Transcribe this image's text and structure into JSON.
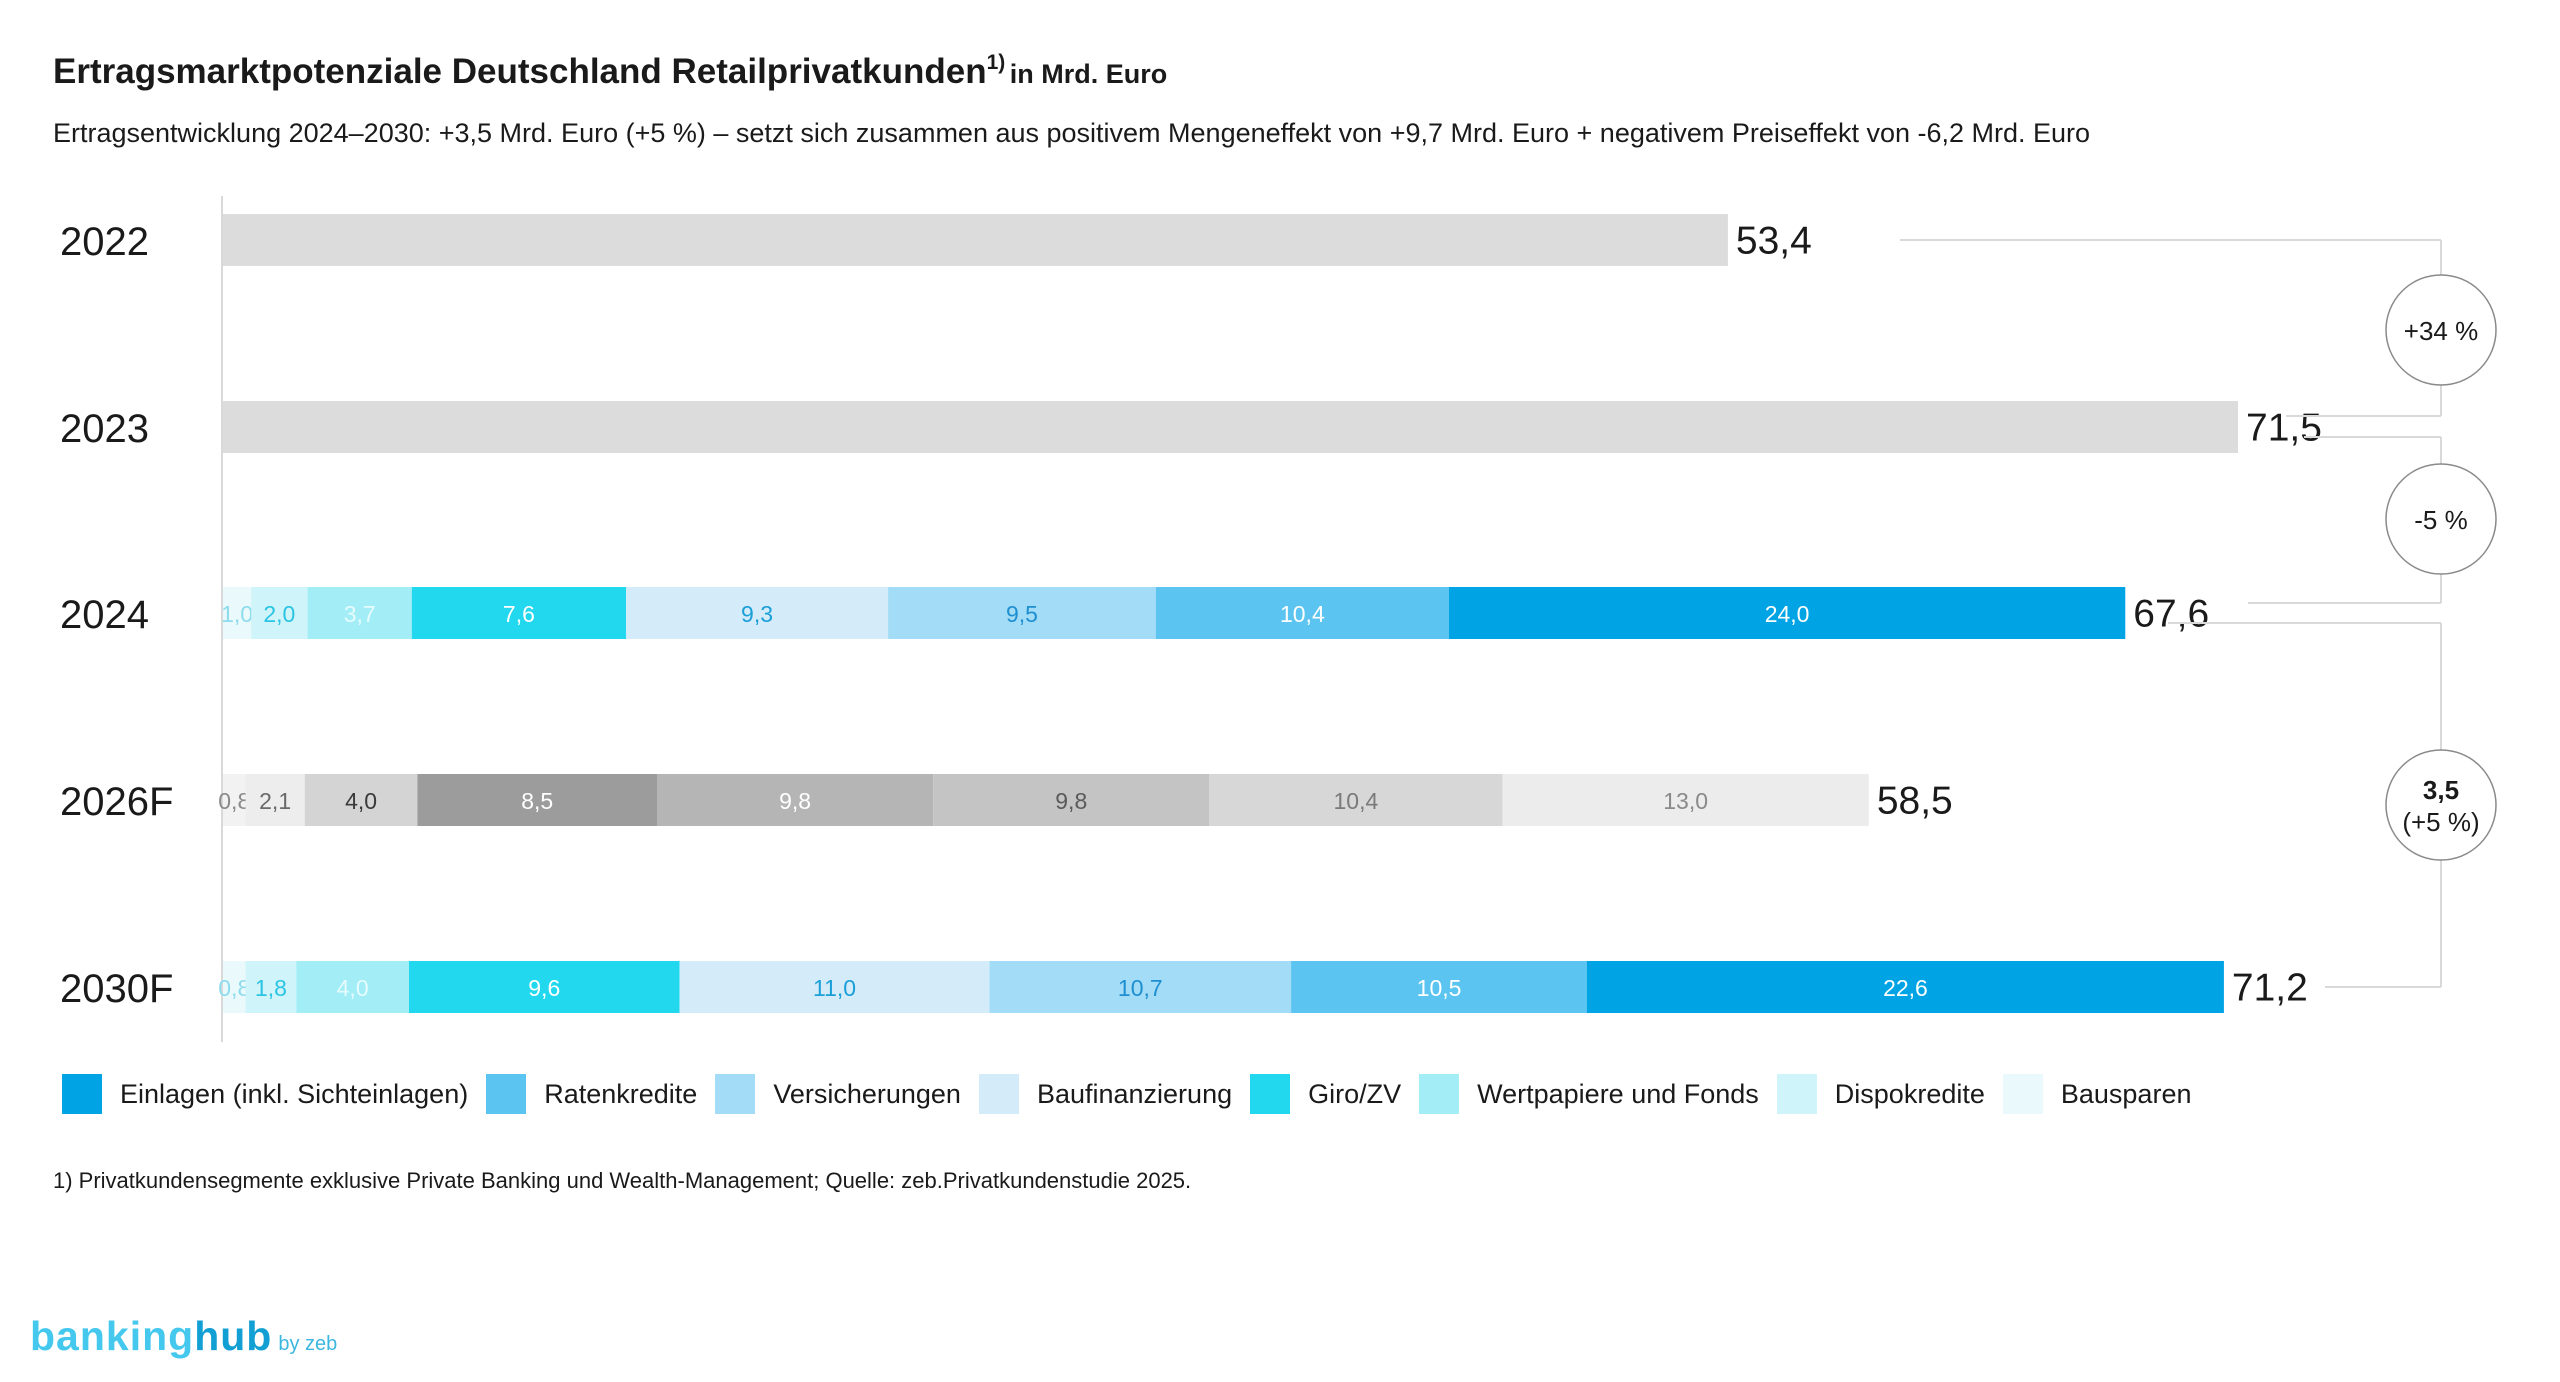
{
  "header": {
    "title": "Ertragsmarktpotenziale Deutschland Retailprivatkunden",
    "title_sup": "1)",
    "title_unit": "in Mrd. Euro",
    "subtitle": "Ertragsentwicklung 2024–2030: +3,5 Mrd. Euro (+5 %) – setzt sich zusammen aus positivem Mengeneffekt von +9,7 Mrd. Euro + negativem Preiseffekt von -6,2 Mrd. Euro"
  },
  "chart_data": {
    "type": "bar",
    "orientation": "horizontal",
    "stacked": true,
    "xlim": [
      0,
      71.5
    ],
    "categories": [
      "2022",
      "2023",
      "2024",
      "2026F",
      "2030F"
    ],
    "segment_order": [
      "Bausparen",
      "Dispokredite",
      "Wertpapiere und Fonds",
      "Giro/ZV",
      "Baufinanzierung",
      "Versicherungen",
      "Ratenkredite",
      "Einlagen (inkl. Sichteinlagen)"
    ],
    "rows": [
      {
        "label": "2022",
        "total": 53.4,
        "total_label": "53,4",
        "style": "total"
      },
      {
        "label": "2023",
        "total": 71.5,
        "total_label": "71,5",
        "style": "total"
      },
      {
        "label": "2024",
        "total": 67.6,
        "total_label": "67,6",
        "style": "blue",
        "values": [
          1.0,
          2.0,
          3.7,
          7.6,
          9.3,
          9.5,
          10.4,
          24.0
        ],
        "labels": [
          "1,0",
          "2,0",
          "3,7",
          "7,6",
          "9,3",
          "9,5",
          "10,4",
          "24,0"
        ]
      },
      {
        "label": "2026F",
        "total": 58.5,
        "total_label": "58,5",
        "style": "grey",
        "values": [
          0.8,
          2.1,
          4.0,
          8.5,
          9.8,
          9.8,
          10.4,
          13.0
        ],
        "labels": [
          "0,8",
          "2,1",
          "4,0",
          "8,5",
          "9,8",
          "9,8",
          "10,4",
          "13,0"
        ]
      },
      {
        "label": "2030F",
        "total": 71.2,
        "total_label": "71,2",
        "style": "blue",
        "values": [
          0.8,
          1.8,
          4.0,
          9.6,
          11.0,
          10.7,
          10.5,
          22.6
        ],
        "labels": [
          "0,8",
          "1,8",
          "4,0",
          "9,6",
          "11,0",
          "10,7",
          "10,5",
          "22,6"
        ]
      }
    ],
    "series": [
      {
        "name": "Einlagen (inkl. Sichteinlagen)",
        "color": "#00a3e3"
      },
      {
        "name": "Ratenkredite",
        "color": "#5cc4f0"
      },
      {
        "name": "Versicherungen",
        "color": "#a3dcf6"
      },
      {
        "name": "Baufinanzierung",
        "color": "#d4ecf9"
      },
      {
        "name": "Giro/ZV",
        "color": "#22d8ee"
      },
      {
        "name": "Wertpapiere und Fonds",
        "color": "#a3eef6"
      },
      {
        "name": "Dispokredite",
        "color": "#cff4f9"
      },
      {
        "name": "Bausparen",
        "color": "#eaf9fc"
      }
    ],
    "grey_palette": [
      "#f2f2f2",
      "#ededed",
      "#d4d4d4",
      "#9c9c9c",
      "#b5b5b5",
      "#c4c4c4",
      "#d7d7d7",
      "#ececec"
    ],
    "total_bar_color": "#dcdcdc",
    "changes": [
      {
        "text": "+34 %"
      },
      {
        "text": "-5 %"
      },
      {
        "text": "3,5",
        "text2": "(+5 %)"
      }
    ],
    "legend_position": "bottom"
  },
  "footnote": "1) Privatkundensegmente exklusive Private Banking und Wealth-Management; Quelle: zeb.Privatkundenstudie 2025.",
  "logo": {
    "part1": "banking",
    "part2": "hub",
    "by": "by zeb",
    "color1": "#45c8ee",
    "color2": "#129fd3"
  }
}
